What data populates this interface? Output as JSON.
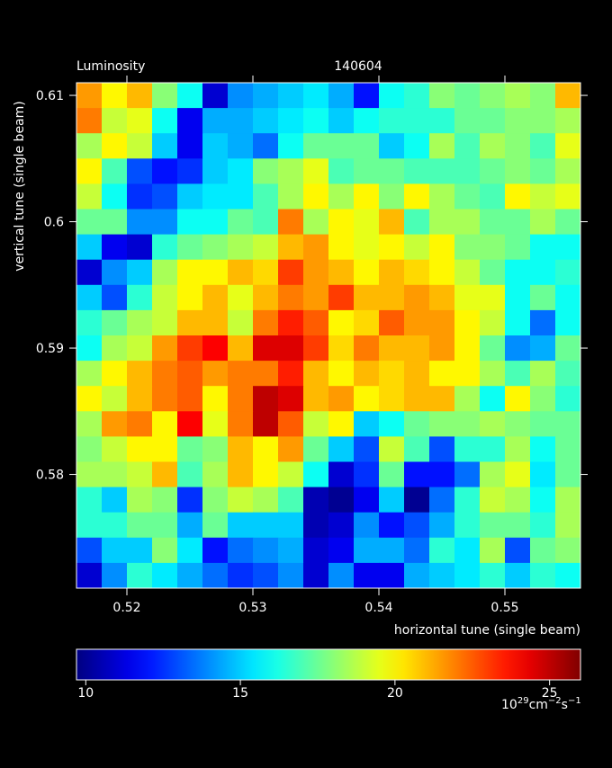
{
  "chart_data": {
    "type": "heatmap",
    "title": "Luminosity",
    "subtitle": "140604",
    "x_label": "horizontal tune (single beam)",
    "y_label": "vertical tune (single beam)",
    "colormap": "jet",
    "x": [
      0.517,
      0.519,
      0.521,
      0.523,
      0.525,
      0.527,
      0.529,
      0.531,
      0.533,
      0.535,
      0.537,
      0.539,
      0.541,
      0.543,
      0.545,
      0.547,
      0.549,
      0.551,
      0.553,
      0.555
    ],
    "y": [
      0.61,
      0.608,
      0.606,
      0.604,
      0.602,
      0.6,
      0.598,
      0.596,
      0.594,
      0.592,
      0.59,
      0.588,
      0.586,
      0.584,
      0.582,
      0.58,
      0.578,
      0.576,
      0.574,
      0.572
    ],
    "z": [
      [
        21.5,
        20,
        21,
        18,
        16,
        11,
        14,
        14.5,
        15,
        15.5,
        14.5,
        12,
        16,
        16.5,
        18,
        17.5,
        18,
        18.5,
        18,
        21
      ],
      [
        22,
        19,
        19.5,
        16,
        11.5,
        14.5,
        14.5,
        15,
        15.5,
        16,
        15,
        16,
        16.5,
        16.5,
        16.5,
        17.5,
        17.5,
        18,
        18,
        18.5
      ],
      [
        18.5,
        20,
        19,
        15,
        11.5,
        15,
        14.5,
        13.5,
        16,
        17.5,
        17.5,
        17.5,
        15,
        16,
        18.5,
        17,
        18.5,
        18,
        17,
        19.5
      ],
      [
        20,
        17,
        13,
        12,
        12.5,
        15,
        15.5,
        18,
        18.5,
        19.5,
        17,
        17.5,
        17.5,
        17,
        17,
        17,
        17.5,
        18,
        17.5,
        18.5
      ],
      [
        19,
        16,
        12.5,
        13,
        15,
        15.5,
        15.5,
        17,
        18.5,
        20,
        18.5,
        20,
        18,
        20,
        18.5,
        17.5,
        17,
        20,
        19,
        19.5
      ],
      [
        17.5,
        17.5,
        14,
        14,
        16,
        16,
        17.5,
        17,
        22,
        18.5,
        20,
        19.5,
        21,
        17,
        18.5,
        18.5,
        17.5,
        17.5,
        18.5,
        17.5
      ],
      [
        15,
        11.5,
        11,
        16.5,
        17.5,
        18,
        18.5,
        19,
        21,
        21.5,
        20,
        19.5,
        20,
        19,
        20,
        18,
        18,
        17.5,
        16,
        16
      ],
      [
        11,
        14,
        15,
        18.5,
        20,
        20,
        21,
        20.5,
        23,
        21.5,
        21,
        20,
        21,
        20.5,
        20,
        19,
        17.5,
        16,
        16,
        16.5
      ],
      [
        15,
        13,
        16.5,
        19,
        20,
        21,
        19.5,
        21,
        22,
        21.5,
        23,
        21,
        21,
        21.5,
        21,
        19.5,
        19.5,
        16,
        17.5,
        16
      ],
      [
        16.5,
        17.5,
        18.5,
        19,
        21,
        21,
        19,
        22,
        23.5,
        22.5,
        20,
        20.5,
        22.5,
        21.5,
        21.5,
        20,
        19,
        16,
        13.5,
        16
      ],
      [
        16,
        18.5,
        19,
        21.5,
        23,
        24,
        21,
        24.5,
        24.5,
        23,
        20.5,
        22,
        21,
        21,
        21.5,
        20,
        17.5,
        14,
        14.5,
        17.5
      ],
      [
        18.5,
        20,
        21,
        22,
        22.5,
        21.5,
        22,
        22,
        23.5,
        21,
        20,
        21,
        20.5,
        21,
        20,
        20,
        18.5,
        17,
        18.5,
        17
      ],
      [
        20,
        19,
        21,
        22,
        22.5,
        20,
        22,
        25,
        24.5,
        21,
        21.5,
        20,
        20.5,
        21,
        21,
        18.5,
        16,
        20,
        18,
        16.5
      ],
      [
        18.5,
        21.5,
        22,
        20,
        24,
        19.5,
        22,
        25,
        22.5,
        19,
        20,
        15,
        16,
        17.5,
        18,
        18,
        18.5,
        18,
        17.5,
        17.5
      ],
      [
        18,
        19,
        20,
        20,
        17.5,
        18,
        21,
        20,
        21.5,
        17.5,
        15,
        13,
        19,
        17,
        13,
        16.5,
        16.5,
        18.5,
        16,
        17.5
      ],
      [
        18.5,
        18.5,
        19,
        21,
        17,
        18.5,
        21,
        20,
        19,
        16,
        11,
        12.5,
        17.5,
        12,
        12,
        13.5,
        18.5,
        19.5,
        15.5,
        17.5
      ],
      [
        16.5,
        15,
        18.5,
        18,
        12.5,
        18,
        19,
        18.5,
        17,
        10.5,
        10,
        11.5,
        15,
        10,
        13.5,
        16.5,
        19,
        18.5,
        16,
        18.5
      ],
      [
        16.5,
        16.5,
        17.5,
        17.5,
        14.5,
        17.5,
        15,
        15,
        15,
        10.5,
        11,
        14,
        12,
        13,
        14.5,
        16.5,
        17.5,
        17.5,
        16.5,
        18.5
      ],
      [
        13,
        15,
        15,
        18,
        15.5,
        12,
        13.5,
        14,
        14.5,
        11,
        11.5,
        14.5,
        14.5,
        13.5,
        16.5,
        15.5,
        18.5,
        13,
        17.5,
        18
      ],
      [
        11,
        14,
        16.5,
        15.5,
        14.5,
        13.5,
        12.5,
        13,
        14,
        11,
        14,
        11.5,
        11.5,
        14.5,
        15,
        15.5,
        16.5,
        15,
        16.5,
        16
      ]
    ],
    "xlim": [
      0.516,
      0.556
    ],
    "ylim": [
      0.571,
      0.611
    ],
    "xticks": [
      0.52,
      0.53,
      0.54,
      0.55
    ],
    "yticks": [
      0.58,
      0.59,
      0.6,
      0.61
    ],
    "clim": [
      9.7,
      26
    ],
    "cticks": [
      10,
      15,
      20,
      25
    ],
    "colorbar_units": [
      {
        "text": "10"
      },
      {
        "text": "29",
        "sup": true
      },
      {
        "text": "cm"
      },
      {
        "text": "−2",
        "sup": true
      },
      {
        "text": "s"
      },
      {
        "text": "−1",
        "sup": true
      }
    ]
  }
}
